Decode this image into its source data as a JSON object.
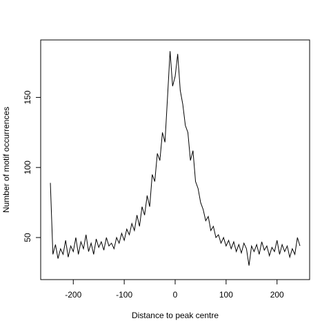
{
  "chart_data": {
    "type": "line",
    "xlabel": "Distance to peak centre",
    "ylabel": "Number of motif occurrences",
    "color": "#000000",
    "x": [
      -245,
      -240,
      -235,
      -230,
      -225,
      -220,
      -215,
      -210,
      -205,
      -200,
      -195,
      -190,
      -185,
      -180,
      -175,
      -170,
      -165,
      -160,
      -155,
      -150,
      -145,
      -140,
      -135,
      -130,
      -125,
      -120,
      -115,
      -110,
      -105,
      -100,
      -95,
      -90,
      -85,
      -80,
      -75,
      -70,
      -65,
      -60,
      -55,
      -50,
      -45,
      -40,
      -35,
      -30,
      -25,
      -20,
      -15,
      -10,
      -5,
      0,
      5,
      10,
      15,
      20,
      25,
      30,
      35,
      40,
      45,
      50,
      55,
      60,
      65,
      70,
      75,
      80,
      85,
      90,
      95,
      100,
      105,
      110,
      115,
      120,
      125,
      130,
      135,
      140,
      145,
      150,
      155,
      160,
      165,
      170,
      175,
      180,
      185,
      190,
      195,
      200,
      205,
      210,
      215,
      220,
      225,
      230,
      235,
      240,
      245
    ],
    "values": [
      89,
      38,
      45,
      35,
      42,
      38,
      48,
      36,
      44,
      40,
      50,
      38,
      47,
      42,
      52,
      40,
      46,
      38,
      49,
      43,
      47,
      41,
      50,
      44,
      46,
      42,
      50,
      46,
      53,
      48,
      56,
      52,
      60,
      55,
      66,
      58,
      72,
      66,
      80,
      72,
      95,
      90,
      110,
      105,
      125,
      118,
      150,
      183,
      158,
      165,
      181,
      155,
      145,
      130,
      125,
      105,
      112,
      90,
      85,
      75,
      70,
      62,
      65,
      55,
      58,
      50,
      52,
      46,
      50,
      44,
      48,
      42,
      47,
      40,
      45,
      39,
      46,
      42,
      30,
      44,
      40,
      45,
      38,
      47,
      41,
      44,
      37,
      43,
      40,
      48,
      38,
      45,
      40,
      44,
      36,
      42,
      38,
      50,
      44
    ],
    "xlim": [
      -264,
      264
    ],
    "ylim": [
      20,
      191
    ],
    "xticks": [
      -200,
      -100,
      0,
      100,
      200
    ],
    "yticks": [
      50,
      100,
      150
    ]
  }
}
